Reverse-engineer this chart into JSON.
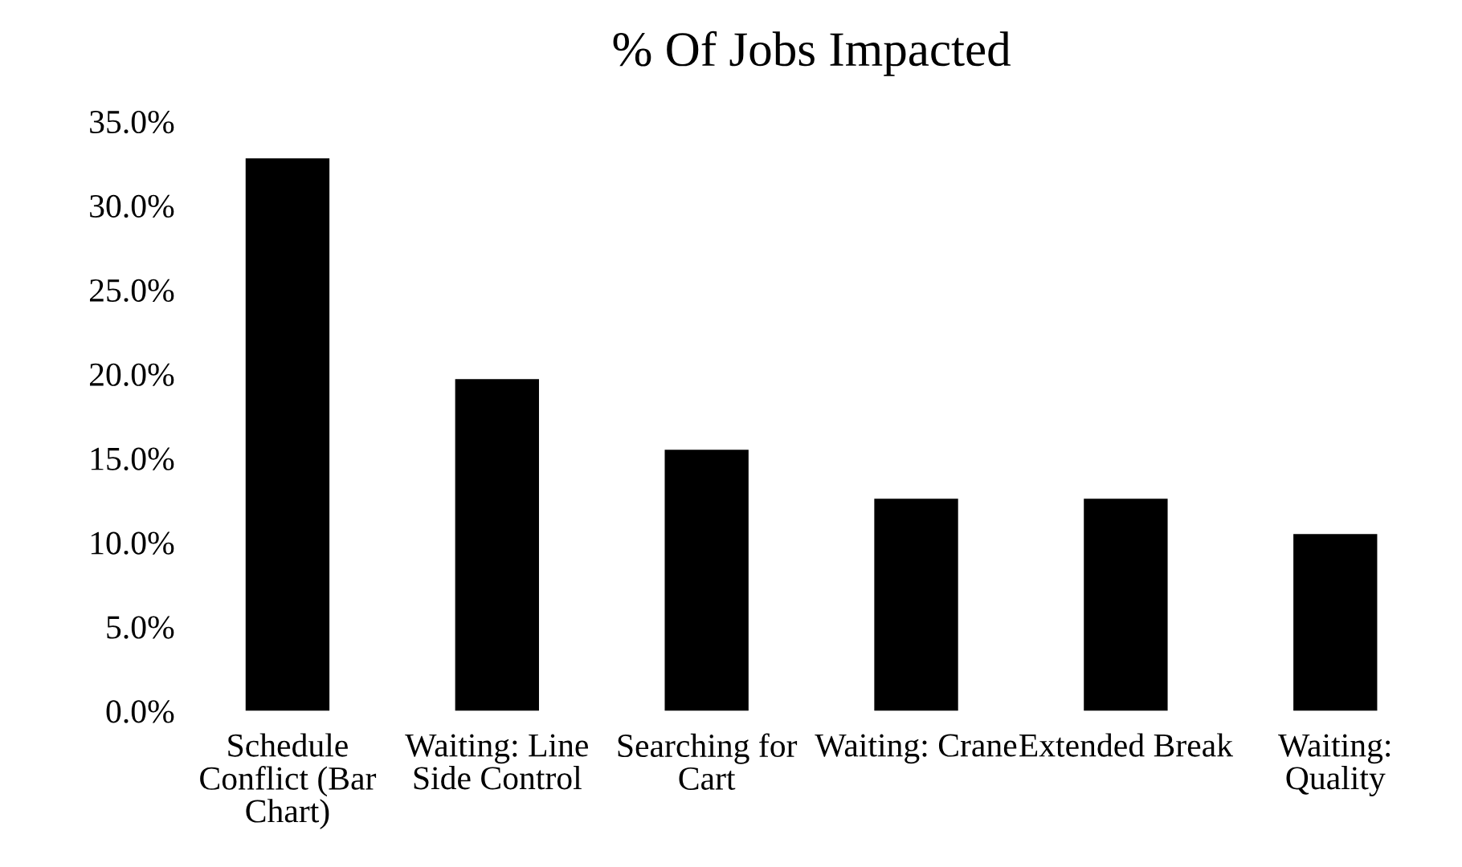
{
  "chart_data": {
    "type": "bar",
    "title": "% Of Jobs Impacted",
    "categories": [
      "Schedule Conflict (Bar Chart)",
      "Waiting: Line Side Control",
      "Searching for Cart",
      "Waiting: Crane",
      "Extended Break",
      "Waiting: Quality"
    ],
    "values": [
      32.8,
      19.7,
      15.5,
      12.6,
      12.6,
      10.5
    ],
    "color": "#000000",
    "ylim": [
      0,
      35
    ],
    "yticks": [
      {
        "value": 0,
        "label": "0.0%"
      },
      {
        "value": 5,
        "label": "5.0%"
      },
      {
        "value": 10,
        "label": "10.0%"
      },
      {
        "value": 15,
        "label": "15.0%"
      },
      {
        "value": 20,
        "label": "20.0%"
      },
      {
        "value": 25,
        "label": "25.0%"
      },
      {
        "value": 30,
        "label": "30.0%"
      },
      {
        "value": 35,
        "label": "35.0%"
      }
    ]
  }
}
